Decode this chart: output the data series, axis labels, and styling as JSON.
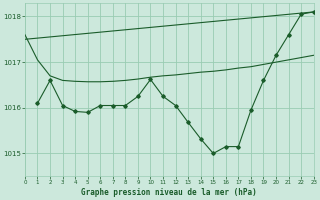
{
  "background_color": "#cce8dc",
  "grid_color": "#99ccb3",
  "line_color": "#1a5c2a",
  "title": "Graphe pression niveau de la mer (hPa)",
  "xlim": [
    0,
    23
  ],
  "ylim": [
    1014.5,
    1018.3
  ],
  "yticks": [
    1015,
    1016,
    1017,
    1018
  ],
  "xticks": [
    0,
    1,
    2,
    3,
    4,
    5,
    6,
    7,
    8,
    9,
    10,
    11,
    12,
    13,
    14,
    15,
    16,
    17,
    18,
    19,
    20,
    21,
    22,
    23
  ],
  "line_smooth_x": [
    0,
    1,
    2,
    3,
    4,
    5,
    6,
    7,
    8,
    9,
    10,
    11,
    12,
    13,
    14,
    15,
    16,
    17,
    18,
    19,
    20,
    21,
    22,
    23
  ],
  "line_smooth_y": [
    1017.6,
    1017.05,
    1016.7,
    1016.6,
    1016.58,
    1016.57,
    1016.57,
    1016.58,
    1016.6,
    1016.63,
    1016.67,
    1016.7,
    1016.72,
    1016.75,
    1016.78,
    1016.8,
    1016.83,
    1016.87,
    1016.9,
    1016.95,
    1017.0,
    1017.05,
    1017.1,
    1017.15
  ],
  "line_trend_x": [
    0,
    23
  ],
  "line_trend_y": [
    1017.5,
    1018.1
  ],
  "line_zigzag_x": [
    1,
    2,
    3,
    4,
    5,
    6,
    7,
    8,
    9,
    10,
    11,
    12,
    13,
    14,
    15,
    16,
    17,
    18,
    19,
    20,
    21,
    22,
    23
  ],
  "line_zigzag_y": [
    1016.1,
    1016.6,
    1016.05,
    1015.92,
    1015.9,
    1016.05,
    1016.05,
    1016.05,
    1016.25,
    1016.62,
    1016.25,
    1016.05,
    1015.68,
    1015.32,
    1015.0,
    1015.15,
    1015.15,
    1015.95,
    1016.6,
    1017.15,
    1017.6,
    1018.05,
    1018.1
  ]
}
